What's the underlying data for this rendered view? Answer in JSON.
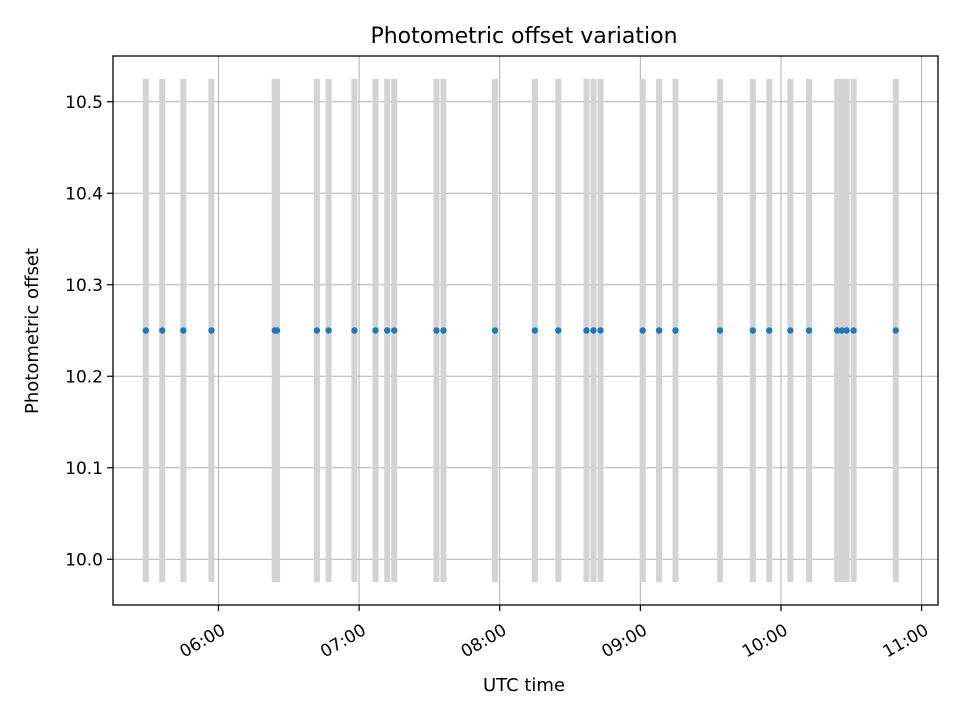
{
  "chart_data": {
    "type": "scatter",
    "title": "Photometric offset variation",
    "xlabel": "UTC time",
    "ylabel": "Photometric offset",
    "x_axis_kind": "time",
    "xlim": [
      "05:15",
      "11:07"
    ],
    "ylim": [
      9.95,
      10.55
    ],
    "x_ticks": [
      "06:00",
      "07:00",
      "08:00",
      "09:00",
      "10:00",
      "11:00"
    ],
    "y_ticks": [
      10.0,
      10.1,
      10.2,
      10.3,
      10.4,
      10.5
    ],
    "y_tick_labels": [
      "10.0",
      "10.1",
      "10.2",
      "10.3",
      "10.4",
      "10.5"
    ],
    "grid": true,
    "series": [
      {
        "marker_color": "#1f77b4",
        "bar_color": "#d3d3d3",
        "points": [
          {
            "x": "05:29",
            "y": 10.25
          },
          {
            "x": "05:36",
            "y": 10.25
          },
          {
            "x": "05:45",
            "y": 10.25
          },
          {
            "x": "05:57",
            "y": 10.25
          },
          {
            "x": "06:24",
            "y": 10.25
          },
          {
            "x": "06:25",
            "y": 10.25
          },
          {
            "x": "06:42",
            "y": 10.25
          },
          {
            "x": "06:47",
            "y": 10.25
          },
          {
            "x": "06:58",
            "y": 10.25
          },
          {
            "x": "07:07",
            "y": 10.25
          },
          {
            "x": "07:12",
            "y": 10.25
          },
          {
            "x": "07:15",
            "y": 10.25
          },
          {
            "x": "07:33",
            "y": 10.25
          },
          {
            "x": "07:36",
            "y": 10.25
          },
          {
            "x": "07:58",
            "y": 10.25
          },
          {
            "x": "08:15",
            "y": 10.25
          },
          {
            "x": "08:25",
            "y": 10.25
          },
          {
            "x": "08:37",
            "y": 10.25
          },
          {
            "x": "08:40",
            "y": 10.25
          },
          {
            "x": "08:43",
            "y": 10.25
          },
          {
            "x": "09:01",
            "y": 10.25
          },
          {
            "x": "09:08",
            "y": 10.25
          },
          {
            "x": "09:15",
            "y": 10.25
          },
          {
            "x": "09:34",
            "y": 10.25
          },
          {
            "x": "09:48",
            "y": 10.25
          },
          {
            "x": "09:55",
            "y": 10.25
          },
          {
            "x": "10:04",
            "y": 10.25
          },
          {
            "x": "10:12",
            "y": 10.25
          },
          {
            "x": "10:24",
            "y": 10.25
          },
          {
            "x": "10:26",
            "y": 10.25
          },
          {
            "x": "10:28",
            "y": 10.25
          },
          {
            "x": "10:31",
            "y": 10.25
          },
          {
            "x": "10:49",
            "y": 10.25
          }
        ],
        "bar_range": [
          9.975,
          10.525
        ]
      }
    ]
  }
}
